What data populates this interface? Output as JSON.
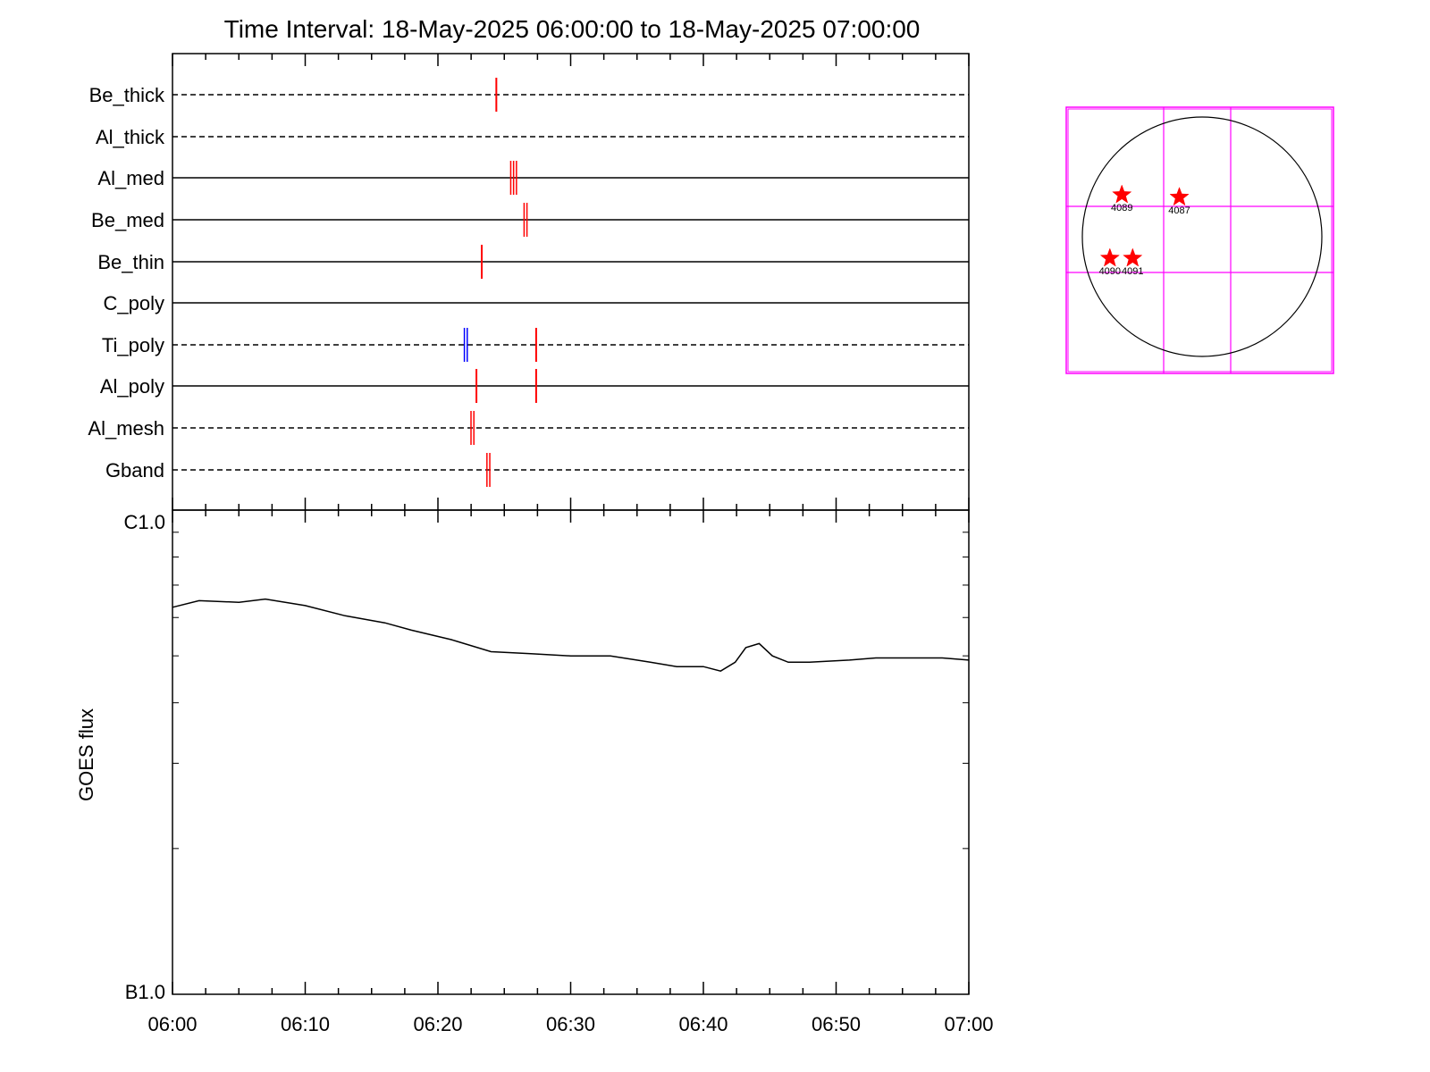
{
  "title": "Time Interval: 18-May-2025 06:00:00 to 18-May-2025 07:00:00",
  "colors": {
    "event": "#ff0000",
    "event_blue": "#0000ff",
    "grid": "#ff00ff",
    "axis": "#000000"
  },
  "chart_data": [
    {
      "type": "timeline",
      "title": "Time Interval: 18-May-2025 06:00:00 to 18-May-2025 07:00:00",
      "xlim": [
        "06:00",
        "07:00"
      ],
      "rows": [
        {
          "label": "Be_thick",
          "line": "dashed",
          "events": [
            {
              "t": 24.4,
              "color": "red",
              "strokes": 1
            }
          ]
        },
        {
          "label": "Al_thick",
          "line": "dashed",
          "events": []
        },
        {
          "label": "Al_med",
          "line": "solid",
          "events": [
            {
              "t": 25.7,
              "color": "red",
              "strokes": 3
            }
          ]
        },
        {
          "label": "Be_med",
          "line": "solid",
          "events": [
            {
              "t": 26.6,
              "color": "red",
              "strokes": 2
            }
          ]
        },
        {
          "label": "Be_thin",
          "line": "solid",
          "events": [
            {
              "t": 23.3,
              "color": "red",
              "strokes": 1
            }
          ]
        },
        {
          "label": "C_poly",
          "line": "solid",
          "events": []
        },
        {
          "label": "Ti_poly",
          "line": "dashed",
          "events": [
            {
              "t": 22.1,
              "color": "blue",
              "strokes": 2
            },
            {
              "t": 27.4,
              "color": "red",
              "strokes": 1
            }
          ]
        },
        {
          "label": "Al_poly",
          "line": "solid",
          "events": [
            {
              "t": 22.9,
              "color": "red",
              "strokes": 1
            },
            {
              "t": 27.4,
              "color": "red",
              "strokes": 1
            }
          ]
        },
        {
          "label": "Al_mesh",
          "line": "dashed",
          "events": [
            {
              "t": 22.6,
              "color": "red",
              "strokes": 2
            }
          ]
        },
        {
          "label": "Gband",
          "line": "dashed",
          "events": [
            {
              "t": 23.8,
              "color": "red",
              "strokes": 2
            }
          ]
        }
      ]
    },
    {
      "type": "line",
      "ylabel": "GOES flux",
      "xlabel": "",
      "x_ticks": [
        "06:00",
        "06:10",
        "06:20",
        "06:30",
        "06:40",
        "06:50",
        "07:00"
      ],
      "y_ticks": [
        "B1.0",
        "C1.0"
      ],
      "ylog": true,
      "ylim": [
        1e-07,
        1e-06
      ],
      "series": [
        {
          "x": [
            0,
            2,
            5,
            7,
            10,
            13,
            16,
            18,
            21,
            24,
            27,
            30,
            33,
            36,
            38,
            40,
            41.3,
            42.4,
            43.2,
            44.2,
            45.2,
            46.4,
            48,
            51,
            53,
            55,
            58,
            60
          ],
          "y": [
            6.3e-07,
            6.5e-07,
            6.45e-07,
            6.55e-07,
            6.35e-07,
            6.05e-07,
            5.85e-07,
            5.65e-07,
            5.4e-07,
            5.1e-07,
            5.05e-07,
            5e-07,
            5e-07,
            4.85e-07,
            4.75e-07,
            4.75e-07,
            4.65e-07,
            4.85e-07,
            5.2e-07,
            5.3e-07,
            5e-07,
            4.85e-07,
            4.85e-07,
            4.9e-07,
            4.95e-07,
            4.95e-07,
            4.95e-07,
            4.9e-07
          ]
        }
      ]
    },
    {
      "type": "scatter",
      "axes": "none",
      "grid": true,
      "points": [
        {
          "label": "4089",
          "x": -0.67,
          "y": 0.35
        },
        {
          "label": "4087",
          "x": -0.19,
          "y": 0.33
        },
        {
          "label": "4090",
          "x": -0.77,
          "y": -0.18
        },
        {
          "label": "4091",
          "x": -0.58,
          "y": -0.18
        }
      ]
    }
  ]
}
